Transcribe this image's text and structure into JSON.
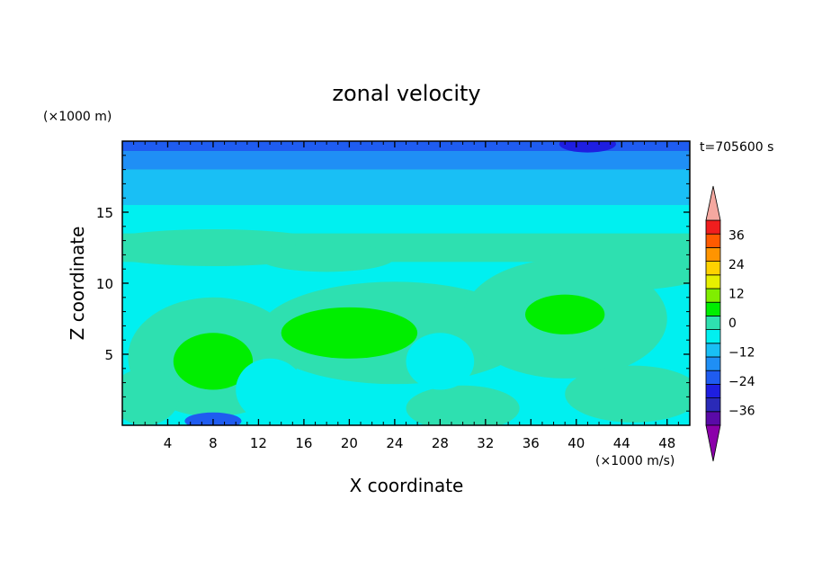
{
  "chart_data": {
    "type": "heatmap",
    "title": "zonal velocity",
    "xlabel": "X coordinate",
    "ylabel": "Z coordinate",
    "x_unit": "(×1000 m/s)",
    "y_unit": "(×1000 m)",
    "time_label": "t=705600 s",
    "xlim": [
      0,
      50
    ],
    "ylim": [
      0,
      20
    ],
    "x_ticks": [
      4,
      8,
      12,
      16,
      20,
      24,
      28,
      32,
      36,
      40,
      44,
      48
    ],
    "y_ticks": [
      5,
      10,
      15
    ],
    "colorbar": {
      "levels": [
        -42,
        -36,
        -30,
        -24,
        -18,
        -12,
        -6,
        0,
        6,
        12,
        18,
        24,
        30,
        36,
        42
      ],
      "colors": [
        "#5a0aa8",
        "#2a2ab8",
        "#1e1ee0",
        "#1f5cf0",
        "#1f8ff5",
        "#19bff5",
        "#00f0f0",
        "#2ee0b0",
        "#00ee00",
        "#80ee00",
        "#e6f000",
        "#ffd200",
        "#ff9400",
        "#ff5a00",
        "#f01e1e"
      ],
      "under_color": "#8b00aa",
      "over_color": "#f5a8a0",
      "tick_labels": [
        "36",
        "24",
        "12",
        "0",
        "−12",
        "−24",
        "−36"
      ],
      "tick_values": [
        36,
        24,
        12,
        0,
        -12,
        -24,
        -36
      ]
    },
    "field": {
      "background_value": 2,
      "bands": [
        {
          "z": [
            19.3,
            20
          ],
          "value": -20
        },
        {
          "z": [
            18.0,
            19.3
          ],
          "value": -15
        },
        {
          "z": [
            15.5,
            18.0
          ],
          "value": -9
        },
        {
          "z": [
            13.5,
            15.5
          ],
          "value": -3
        },
        {
          "z": [
            11.5,
            13.5
          ],
          "value": 1
        },
        {
          "z": [
            0,
            11.5
          ],
          "value": -4
        }
      ],
      "blobs": [
        {
          "x": 41,
          "z": 19.8,
          "rx": 2.5,
          "rz": 0.6,
          "value": -26
        },
        {
          "x": 8,
          "z": 12.5,
          "rx": 11,
          "rz": 1.3,
          "value": 3
        },
        {
          "x": 44,
          "z": 11,
          "rx": 8,
          "rz": 1.5,
          "value": 3
        },
        {
          "x": 18,
          "z": 11.8,
          "rx": 6,
          "rz": 1.0,
          "value": 3
        },
        {
          "x": 24,
          "z": 6.5,
          "rx": 12,
          "rz": 3.6,
          "value": 3
        },
        {
          "x": 8,
          "z": 4.8,
          "rx": 7.5,
          "rz": 4.2,
          "value": 3
        },
        {
          "x": 39,
          "z": 7.5,
          "rx": 9,
          "rz": 4.2,
          "value": 3
        },
        {
          "x": 30,
          "z": 1.2,
          "rx": 5,
          "rz": 1.6,
          "value": 3
        },
        {
          "x": 45,
          "z": 2.2,
          "rx": 6,
          "rz": 2.0,
          "value": 3
        },
        {
          "x": 2,
          "z": 2.0,
          "rx": 3,
          "rz": 2.0,
          "value": 3
        },
        {
          "x": 20,
          "z": 6.5,
          "rx": 6,
          "rz": 1.8,
          "value": 8
        },
        {
          "x": 8,
          "z": 4.5,
          "rx": 3.5,
          "rz": 2.0,
          "value": 8
        },
        {
          "x": 39,
          "z": 7.8,
          "rx": 3.5,
          "rz": 1.4,
          "value": 8
        },
        {
          "x": 13,
          "z": 2.5,
          "rx": 3,
          "rz": 2.2,
          "value": -3
        },
        {
          "x": 28,
          "z": 4.5,
          "rx": 3,
          "rz": 2.0,
          "value": -3
        },
        {
          "x": 8,
          "z": 0.3,
          "rx": 2.5,
          "rz": 0.6,
          "value": -20
        }
      ]
    }
  }
}
